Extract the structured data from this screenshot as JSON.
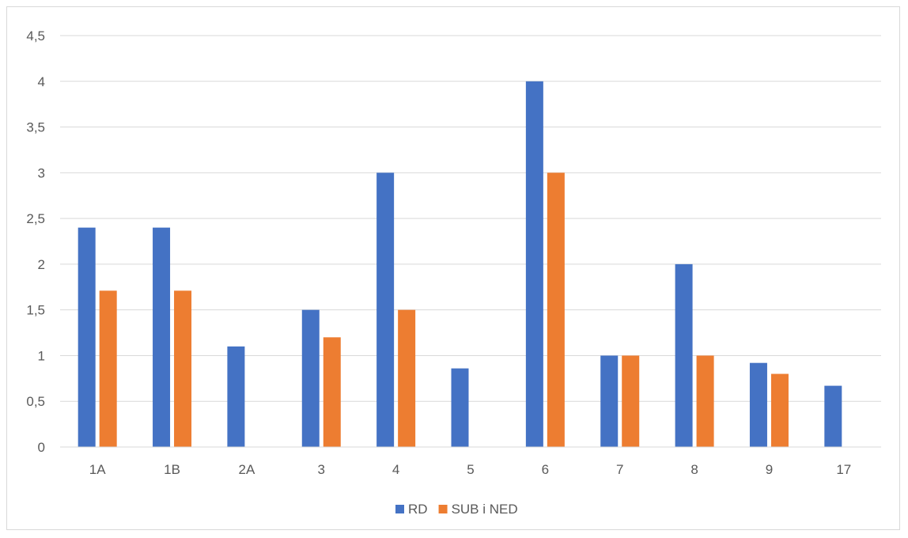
{
  "chart_data": {
    "type": "bar",
    "title": "",
    "xlabel": "",
    "ylabel": "",
    "categories": [
      "1A",
      "1B",
      "2A",
      "3",
      "4",
      "5",
      "6",
      "7",
      "8",
      "9",
      "17"
    ],
    "series": [
      {
        "name": "RD",
        "color": "#4472C4",
        "values": [
          2.4,
          2.4,
          1.1,
          1.5,
          3,
          0.86,
          4,
          1,
          2,
          0.92,
          0.67
        ]
      },
      {
        "name": "SUB i NED",
        "color": "#ED7D31",
        "values": [
          1.71,
          1.71,
          null,
          1.2,
          1.5,
          null,
          3,
          1,
          1,
          0.8,
          null
        ]
      }
    ],
    "ylim": [
      0,
      4.5
    ],
    "yticks": [
      "0",
      "0,5",
      "1",
      "1,5",
      "2",
      "2,5",
      "3",
      "3,5",
      "4",
      "4,5"
    ],
    "grid": true,
    "legend_position": "bottom"
  }
}
